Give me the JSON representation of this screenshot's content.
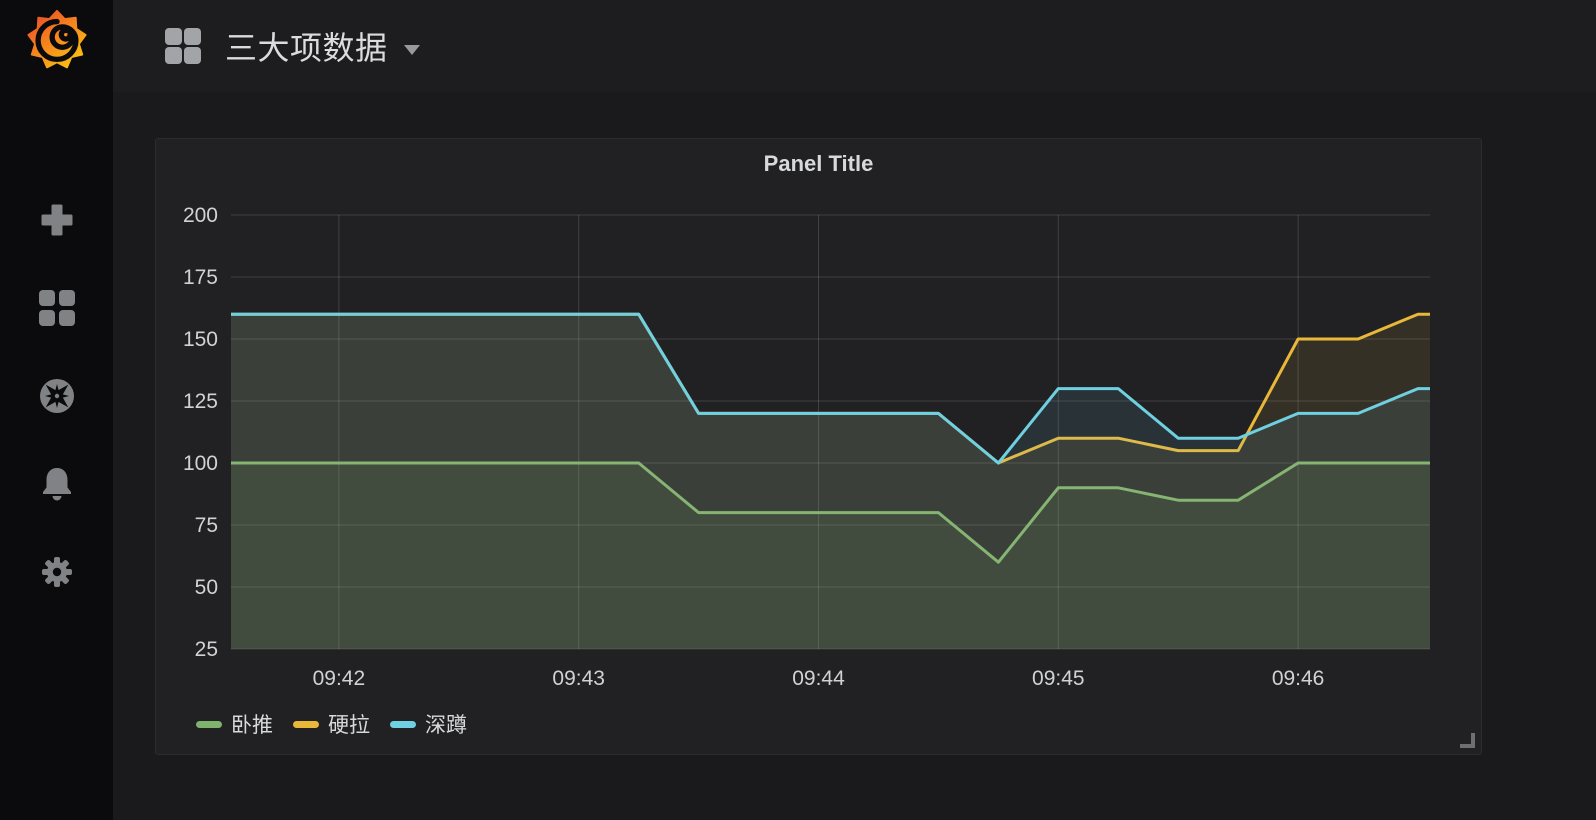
{
  "header": {
    "dashboard_title": "三大项数据"
  },
  "sidebar": {
    "items": [
      {
        "id": "logo",
        "icon": "grafana-logo"
      },
      {
        "id": "create",
        "icon": "plus-icon"
      },
      {
        "id": "dashboards",
        "icon": "dashboards-icon"
      },
      {
        "id": "explore",
        "icon": "compass-icon"
      },
      {
        "id": "alerting",
        "icon": "bell-icon"
      },
      {
        "id": "configuration",
        "icon": "gear-icon"
      }
    ]
  },
  "panel": {
    "title": "Panel Title"
  },
  "colors": {
    "green": "#7EB26D",
    "yellow": "#EAB839",
    "blue": "#6ED0E0",
    "panel_bg": "#212124",
    "grid": "rgba(255,255,255,0.14)",
    "tick_text": "#d1d2d3"
  },
  "chart_data": {
    "type": "line",
    "title": "Panel Title",
    "x": [
      "09:41:30",
      "09:41:45",
      "09:42:00",
      "09:42:15",
      "09:42:30",
      "09:42:45",
      "09:43:00",
      "09:43:15",
      "09:43:30",
      "09:43:45",
      "09:44:00",
      "09:44:15",
      "09:44:30",
      "09:44:45",
      "09:45:00",
      "09:45:15",
      "09:45:30",
      "09:45:45",
      "09:46:00",
      "09:46:15",
      "09:46:30"
    ],
    "series": [
      {
        "name": "卧推",
        "color": "#7EB26D",
        "values": [
          100,
          100,
          100,
          100,
          100,
          100,
          100,
          100,
          80,
          80,
          80,
          80,
          80,
          60,
          90,
          90,
          85,
          85,
          100,
          100,
          100
        ]
      },
      {
        "name": "硬拉",
        "color": "#EAB839",
        "values": [
          160,
          160,
          160,
          160,
          160,
          160,
          160,
          160,
          120,
          120,
          120,
          120,
          120,
          100,
          110,
          110,
          105,
          105,
          150,
          150,
          160
        ]
      },
      {
        "name": "深蹲",
        "color": "#6ED0E0",
        "values": [
          160,
          160,
          160,
          160,
          160,
          160,
          160,
          160,
          120,
          120,
          120,
          120,
          120,
          100,
          130,
          130,
          110,
          110,
          120,
          120,
          130
        ]
      }
    ],
    "xlabel": "",
    "ylabel": "",
    "ylim": [
      25,
      200
    ],
    "yticks": [
      25,
      50,
      75,
      100,
      125,
      150,
      175,
      200
    ],
    "xticks": [
      "09:42",
      "09:43",
      "09:44",
      "09:45",
      "09:46"
    ],
    "time_range": [
      "09:41:33",
      "09:46:33"
    ],
    "grid": true,
    "legend_position": "bottom-left",
    "fill_opacity": 0.1,
    "line_width": 3
  }
}
